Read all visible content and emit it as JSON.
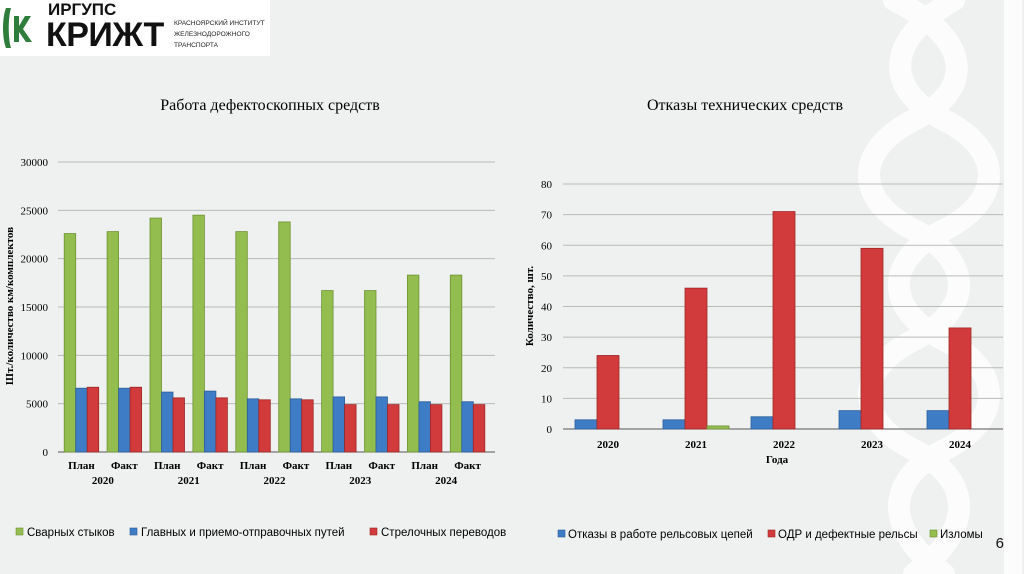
{
  "logo": {
    "small": "ИРГУПС",
    "big": "КРИЖТ",
    "lines": [
      "КРАСНОЯРСКИЙ ИНСТИТУТ",
      "ЖЕЛЕЗНОДОРОЖНОГО",
      "ТРАНСПОРТА"
    ]
  },
  "page_number": "6",
  "colors": {
    "green": "#93bd4f",
    "blue": "#3f7cc6",
    "red": "#d23b3b",
    "green_dark": "#6e9232",
    "blue_dark": "#2c5e99",
    "red_dark": "#9e2525"
  },
  "chart_data": [
    {
      "type": "bar",
      "title": "Работа дефектоскопных средств",
      "ylabel": "Шт./количество км/комплектов",
      "xlabel": "",
      "ylim": [
        0,
        30000
      ],
      "yticks": [
        "0",
        "5000",
        "10000",
        "15000",
        "20000",
        "25000",
        "30000"
      ],
      "categories": [
        "План",
        "Факт",
        "План",
        "Факт",
        "План",
        "Факт",
        "План",
        "Факт",
        "План",
        "Факт"
      ],
      "groups": [
        "2020",
        "2021",
        "2022",
        "2023",
        "2024"
      ],
      "series": [
        {
          "name": "Сварных стыков",
          "color": "green",
          "values": [
            22600,
            22800,
            24200,
            24500,
            22800,
            23800,
            16700,
            16700,
            18300,
            18300
          ]
        },
        {
          "name": "Главных и приемо-отправочных путей",
          "color": "blue",
          "values": [
            6600,
            6600,
            6200,
            6300,
            5500,
            5500,
            5700,
            5700,
            5200,
            5200
          ]
        },
        {
          "name": "Стрелочных переводов",
          "color": "red",
          "values": [
            6700,
            6700,
            5600,
            5600,
            5400,
            5400,
            4900,
            4900,
            4900,
            4900
          ]
        }
      ],
      "legend": "bottom"
    },
    {
      "type": "bar",
      "title": "Отказы технических средств",
      "ylabel": "Количество, шт.",
      "xlabel": "Года",
      "ylim": [
        0,
        80
      ],
      "yticks": [
        "0",
        "10",
        "20",
        "30",
        "40",
        "50",
        "60",
        "70",
        "80"
      ],
      "categories": [
        "2020",
        "2021",
        "2022",
        "2023",
        "2024"
      ],
      "series": [
        {
          "name": "Отказы в работе рельсовых цепей",
          "color": "blue",
          "values": [
            3,
            3,
            4,
            6,
            6
          ]
        },
        {
          "name": "ОДР и дефектные рельсы",
          "color": "red",
          "values": [
            24,
            46,
            71,
            59,
            33
          ]
        },
        {
          "name": "Изломы",
          "color": "green",
          "values": [
            0,
            1,
            0,
            0,
            0
          ]
        }
      ],
      "legend": "bottom"
    }
  ]
}
